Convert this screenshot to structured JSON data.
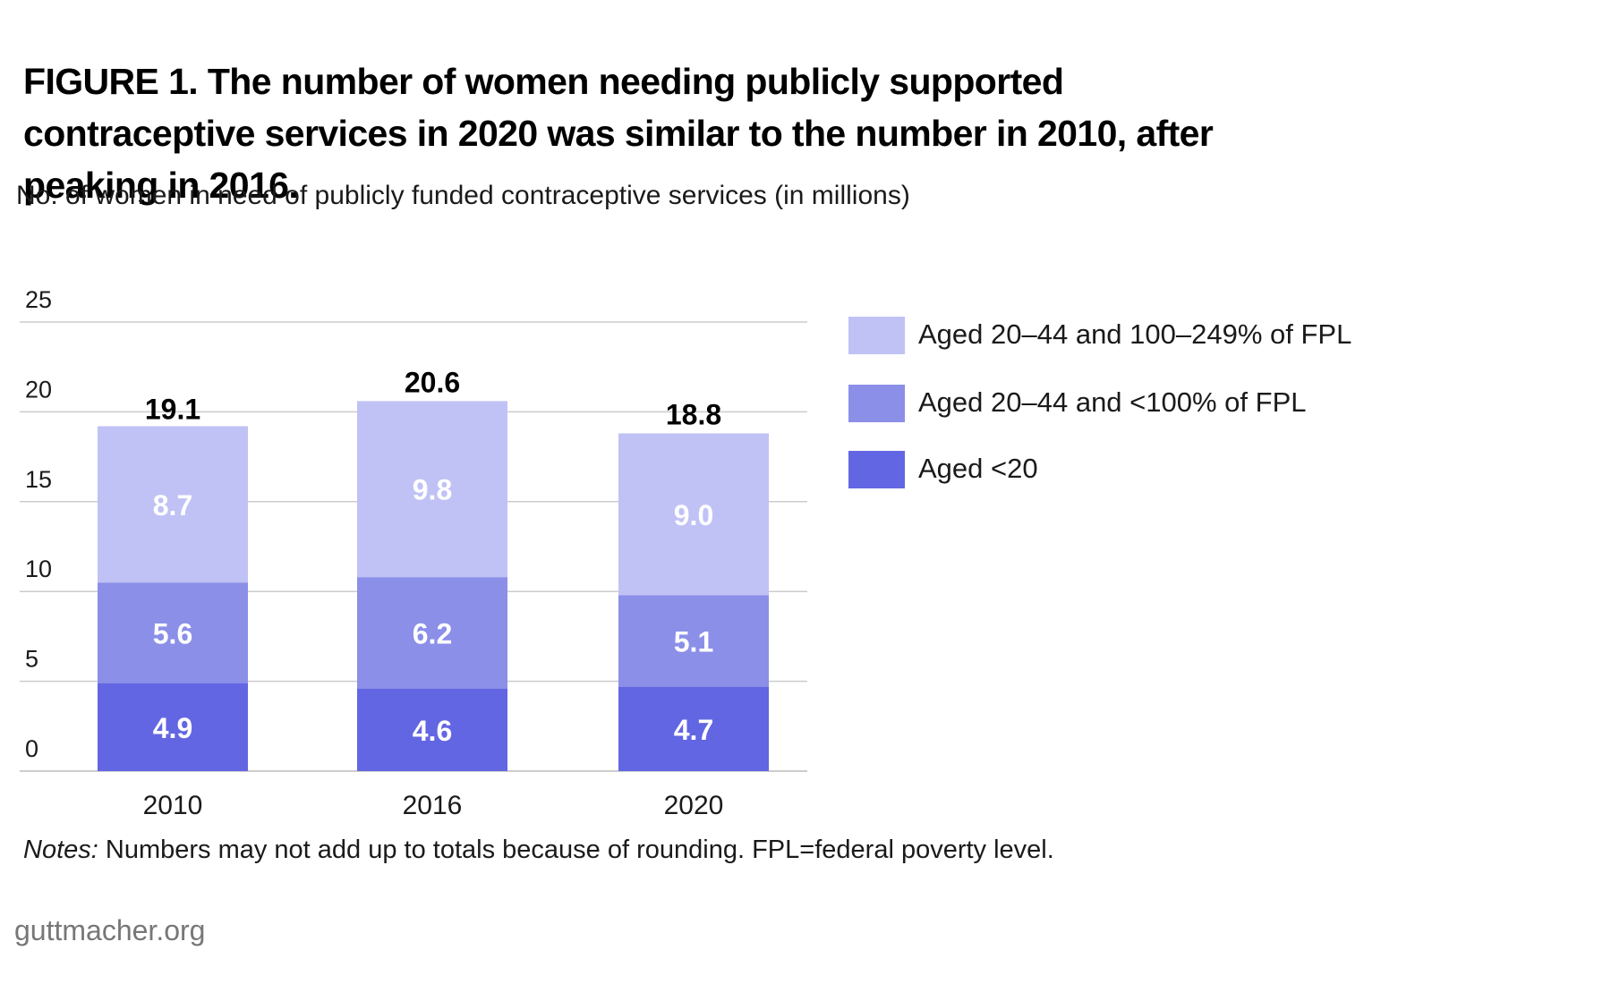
{
  "title": "FIGURE 1. The number of women needing publicly supported contraceptive services in 2020 was similar to the number in 2010, after peaking in 2016.",
  "subtitle": "No. of women in need of publicly funded contraceptive services (in millions)",
  "notes_label": "Notes:",
  "notes_text": " Numbers may not add up to totals because of rounding. FPL=federal poverty level.",
  "source": "guttmacher.org",
  "colors": {
    "aged_under_20": "#6366e2",
    "aged_20_44_under_100": "#8b8fe8",
    "aged_20_44_100_249": "#c0c2f5",
    "gridline": "#cccccc",
    "axis": "#bbbbbb"
  },
  "chart_data": {
    "type": "bar",
    "stacked": true,
    "categories": [
      "2010",
      "2016",
      "2020"
    ],
    "series": [
      {
        "name": "Aged <20",
        "values": [
          4.9,
          4.6,
          4.7
        ]
      },
      {
        "name": "Aged 20–44 and <100% of FPL",
        "values": [
          5.6,
          6.2,
          5.1
        ]
      },
      {
        "name": "Aged 20–44 and 100–249% of FPL",
        "values": [
          8.7,
          9.8,
          9.0
        ]
      }
    ],
    "totals": [
      19.1,
      20.6,
      18.8
    ],
    "yticks": [
      "0",
      "5",
      "10",
      "15",
      "20",
      "25"
    ],
    "ylim": [
      0,
      25
    ],
    "grid": true,
    "legend": [
      {
        "label": "Aged 20–44 and 100–249% of FPL",
        "color": "#c0c2f5"
      },
      {
        "label": "Aged 20–44 and <100% of FPL",
        "color": "#8b8fe8"
      },
      {
        "label": "Aged <20",
        "color": "#6366e2"
      }
    ],
    "legend_position": "right"
  }
}
